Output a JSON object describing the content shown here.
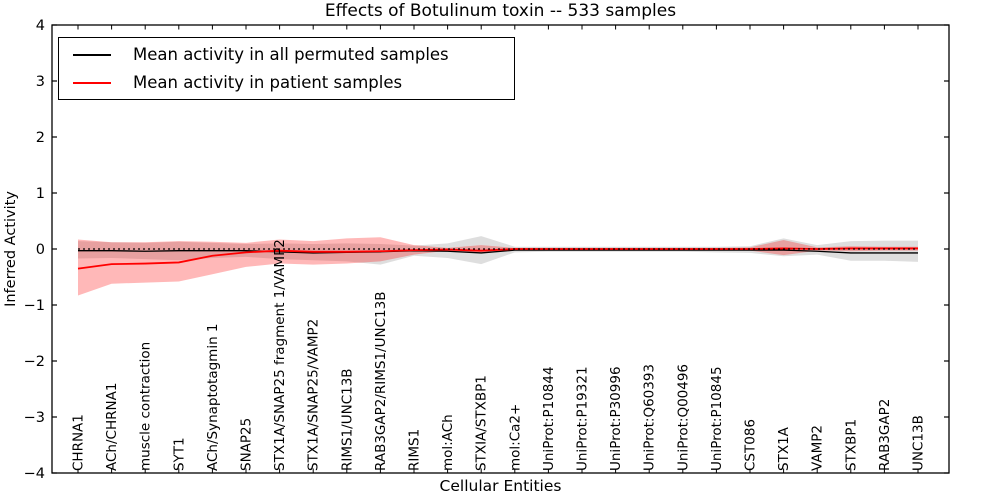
{
  "chart_data": {
    "type": "line",
    "title": "Effects of Botulinum toxin -- 533 samples",
    "xlabel": "Cellular Entities",
    "ylabel": "Inferred Activity",
    "ylim": [
      -4,
      4
    ],
    "yticks": [
      4,
      3,
      2,
      1,
      0,
      -1,
      -2,
      -3,
      -4
    ],
    "grid": false,
    "legend_position": "upper left",
    "zero_line": {
      "y": 0,
      "style": "dotted",
      "color": "#000000"
    },
    "categories": [
      "CHRNA1",
      "ACh/CHRNA1",
      "muscle contraction",
      "SYT1",
      "ACh/Synaptotagmin 1",
      "SNAP25",
      "STX1A/SNAP25 fragment 1/VAMP2",
      "STX1A/SNAP25/VAMP2",
      "RIMS1/UNC13B",
      "RAB3GAP2/RIMS1/UNC13B",
      "RIMS1",
      "mol:ACh",
      "STXIA/STXBP1",
      "mol:Ca2+",
      "UniProt:P10844",
      "UniProt:P19321",
      "UniProt:P30996",
      "UniProt:Q60393",
      "UniProt:Q00496",
      "UniProt:P10845",
      "CST086",
      "STX1A",
      "VAMP2",
      "STXBP1",
      "RAB3GAP2",
      "UNC13B"
    ],
    "series": [
      {
        "name": "Mean activity in all permuted samples",
        "color": "#000000",
        "band_color": "rgba(0,0,0,0.13)",
        "values": [
          -0.03,
          -0.03,
          -0.04,
          -0.03,
          -0.03,
          -0.03,
          -0.05,
          -0.07,
          -0.06,
          -0.05,
          -0.03,
          -0.04,
          -0.07,
          -0.02,
          -0.02,
          -0.02,
          -0.02,
          -0.02,
          -0.02,
          -0.02,
          -0.02,
          -0.02,
          -0.04,
          -0.07,
          -0.07,
          -0.07
        ],
        "band_low": [
          -0.17,
          -0.16,
          -0.18,
          -0.2,
          -0.16,
          -0.14,
          -0.18,
          -0.2,
          -0.22,
          -0.28,
          -0.12,
          -0.16,
          -0.27,
          -0.06,
          -0.05,
          -0.05,
          -0.05,
          -0.05,
          -0.05,
          -0.06,
          -0.07,
          -0.13,
          -0.1,
          -0.21,
          -0.21,
          -0.23
        ],
        "band_high": [
          0.14,
          0.12,
          0.11,
          0.13,
          0.11,
          0.09,
          0.1,
          0.09,
          0.1,
          0.09,
          0.06,
          0.1,
          0.23,
          0.04,
          0.04,
          0.04,
          0.04,
          0.04,
          0.04,
          0.04,
          0.05,
          0.19,
          0.07,
          0.14,
          0.15,
          0.15
        ]
      },
      {
        "name": "Mean activity in patient samples",
        "color": "#ff0000",
        "band_color": "rgba(255,0,0,0.28)",
        "values": [
          -0.35,
          -0.27,
          -0.26,
          -0.24,
          -0.12,
          -0.06,
          -0.03,
          -0.05,
          -0.05,
          -0.04,
          -0.02,
          -0.01,
          -0.03,
          0,
          0,
          0,
          0,
          0,
          0,
          0,
          0,
          0.01,
          0,
          0.01,
          0.01,
          0.01
        ],
        "band_low": [
          -0.83,
          -0.62,
          -0.6,
          -0.58,
          -0.45,
          -0.32,
          -0.26,
          -0.28,
          -0.26,
          -0.22,
          -0.1,
          -0.03,
          -0.07,
          -0.02,
          -0.02,
          -0.02,
          -0.02,
          -0.02,
          -0.02,
          -0.02,
          -0.03,
          -0.11,
          -0.03,
          -0.04,
          -0.03,
          -0.03
        ],
        "band_high": [
          0.17,
          0.12,
          0.12,
          0.14,
          0.13,
          0.11,
          0.17,
          0.14,
          0.19,
          0.21,
          0.07,
          0.02,
          0.07,
          0.02,
          0.02,
          0.02,
          0.02,
          0.02,
          0.02,
          0.02,
          0.03,
          0.16,
          0.03,
          0.05,
          0.04,
          0.04
        ]
      }
    ]
  }
}
